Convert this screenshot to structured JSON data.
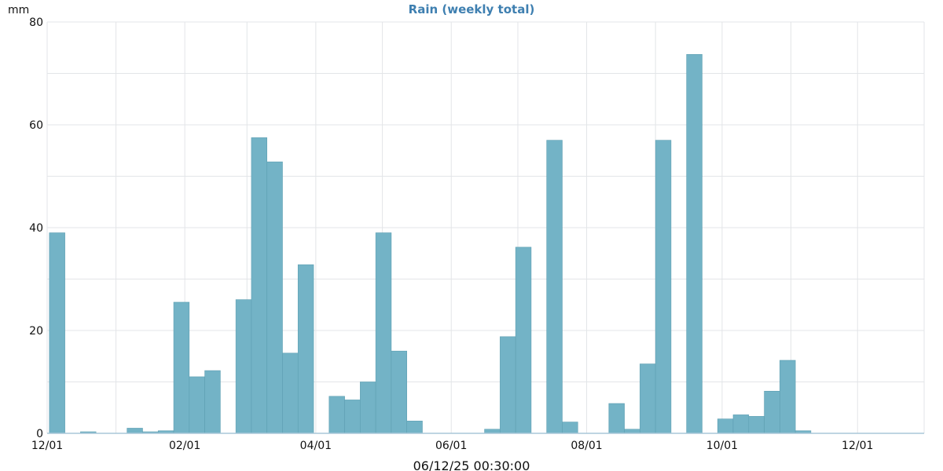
{
  "chart_data": {
    "type": "bar",
    "title": "Rain (weekly total)",
    "ylabel": "mm",
    "xlabel": "",
    "ylim": [
      0,
      80
    ],
    "y_ticks": [
      0,
      20,
      40,
      60,
      80
    ],
    "x_start": "2024-12-01",
    "x_end": "2025-12-31",
    "x_ticks": [
      {
        "date": "2024-12-01",
        "label": "12/01"
      },
      {
        "date": "2025-02-01",
        "label": "02/01"
      },
      {
        "date": "2025-04-01",
        "label": "04/01"
      },
      {
        "date": "2025-06-01",
        "label": "06/01"
      },
      {
        "date": "2025-08-01",
        "label": "08/01"
      },
      {
        "date": "2025-10-01",
        "label": "10/01"
      },
      {
        "date": "2025-12-01",
        "label": "12/01"
      }
    ],
    "series": [
      {
        "name": "Rain (weekly total)",
        "color": "#73b3c6",
        "week_starts": [
          "2024-12-02",
          "2024-12-09",
          "2024-12-16",
          "2024-12-23",
          "2024-12-30",
          "2025-01-06",
          "2025-01-13",
          "2025-01-20",
          "2025-01-27",
          "2025-02-03",
          "2025-02-10",
          "2025-02-17",
          "2025-02-24",
          "2025-03-03",
          "2025-03-10",
          "2025-03-17",
          "2025-03-24",
          "2025-03-31",
          "2025-04-07",
          "2025-04-14",
          "2025-04-21",
          "2025-04-28",
          "2025-05-05",
          "2025-05-12",
          "2025-05-19",
          "2025-05-26",
          "2025-06-02",
          "2025-06-09",
          "2025-06-16",
          "2025-06-23",
          "2025-06-30",
          "2025-07-07",
          "2025-07-14",
          "2025-07-21",
          "2025-07-28",
          "2025-08-04",
          "2025-08-11",
          "2025-08-18",
          "2025-08-25",
          "2025-09-01",
          "2025-09-08",
          "2025-09-15",
          "2025-09-22",
          "2025-09-29",
          "2025-10-06",
          "2025-10-13",
          "2025-10-20",
          "2025-10-27",
          "2025-11-03",
          "2025-11-10",
          "2025-11-17",
          "2025-11-24"
        ],
        "values": [
          39,
          0,
          0.3,
          0,
          0,
          1,
          0.3,
          0.5,
          25.5,
          11,
          12.2,
          0,
          26,
          57.5,
          52.8,
          15.6,
          32.8,
          0,
          7.2,
          6.5,
          10,
          39,
          16,
          2.4,
          0,
          0,
          0,
          0,
          0.8,
          18.8,
          36.2,
          0,
          57,
          2.2,
          0,
          0,
          5.8,
          0.8,
          13.5,
          57,
          0,
          73.7,
          0,
          2.8,
          3.6,
          3.3,
          8.2,
          14.2,
          0.5,
          0,
          0,
          0
        ]
      }
    ],
    "colors": {
      "bar_fill": "#73b3c6",
      "bar_stroke": "#5e9fb2",
      "title": "#3e7fb0",
      "grid": "#e3e5e8",
      "axis": "#aac7d8"
    }
  },
  "footer": {
    "timestamp": "06/12/25 00:30:00"
  }
}
